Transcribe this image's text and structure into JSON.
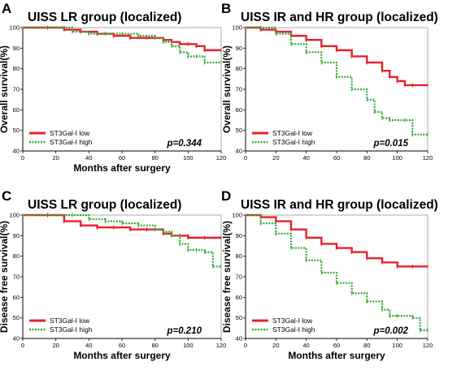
{
  "chart_data": [
    {
      "type": "line",
      "panel_letter": "A",
      "title": "UISS LR group (localized)",
      "xlabel": "Months after surgery",
      "ylabel": "Overall survival(%)",
      "xlim": [
        0,
        120
      ],
      "ylim": [
        40,
        100
      ],
      "xticks": [
        "0",
        "20",
        "40",
        "60",
        "80",
        "100",
        "120"
      ],
      "yticks": [
        "40",
        "50",
        "60",
        "70",
        "80",
        "90",
        "100"
      ],
      "legend_position": "bottom-left",
      "annotation": "p=0.344",
      "series": [
        {
          "name": "ST3Gal-I low",
          "color": "#e8202a",
          "style": "solid",
          "x": [
            0,
            15,
            25,
            35,
            45,
            55,
            65,
            75,
            85,
            90,
            95,
            100,
            105,
            110,
            120
          ],
          "y": [
            100,
            100,
            99,
            98,
            97,
            96,
            95,
            95,
            94,
            93,
            92,
            92,
            91,
            89,
            89
          ]
        },
        {
          "name": "ST3Gal-I high",
          "color": "#3aa83a",
          "style": "dotted",
          "x": [
            0,
            25,
            30,
            40,
            50,
            60,
            70,
            80,
            85,
            90,
            95,
            100,
            105,
            110,
            120
          ],
          "y": [
            100,
            100,
            98,
            97,
            97,
            97,
            96,
            95,
            93,
            91,
            88,
            86,
            86,
            83,
            83
          ]
        }
      ]
    },
    {
      "type": "line",
      "panel_letter": "B",
      "title": "UISS IR and HR group (localized)",
      "xlabel": "",
      "ylabel": "Overall survival(%)",
      "xlim": [
        0,
        120
      ],
      "ylim": [
        40,
        100
      ],
      "xticks": [
        "0",
        "20",
        "40",
        "60",
        "80",
        "100",
        "120"
      ],
      "yticks": [
        "40",
        "50",
        "60",
        "70",
        "80",
        "90",
        "100"
      ],
      "legend_position": "bottom-left",
      "annotation": "p=0.015",
      "series": [
        {
          "name": "ST3Gal-I low",
          "color": "#e8202a",
          "style": "solid",
          "x": [
            0,
            10,
            20,
            30,
            40,
            50,
            60,
            70,
            80,
            90,
            95,
            100,
            105,
            110,
            120
          ],
          "y": [
            100,
            99,
            98,
            96,
            94,
            91,
            89,
            86,
            83,
            79,
            76,
            74,
            72,
            72,
            72
          ]
        },
        {
          "name": "ST3Gal-I high",
          "color": "#3aa83a",
          "style": "dotted",
          "x": [
            0,
            10,
            20,
            30,
            40,
            50,
            60,
            70,
            80,
            85,
            90,
            95,
            105,
            110,
            120
          ],
          "y": [
            100,
            100,
            97,
            92,
            88,
            83,
            76,
            70,
            65,
            59,
            56,
            55,
            55,
            48,
            48
          ]
        }
      ]
    },
    {
      "type": "line",
      "panel_letter": "C",
      "title": "UISS LR group (localized)",
      "xlabel": "Months after surgery",
      "ylabel": "Disease free survival(%)",
      "xlim": [
        0,
        120
      ],
      "ylim": [
        40,
        100
      ],
      "xticks": [
        "0",
        "20",
        "40",
        "60",
        "80",
        "100",
        "120"
      ],
      "yticks": [
        "40",
        "50",
        "60",
        "70",
        "80",
        "90",
        "100"
      ],
      "legend_position": "bottom-left",
      "annotation": "p=0.210",
      "series": [
        {
          "name": "ST3Gal-I low",
          "color": "#e8202a",
          "style": "solid",
          "x": [
            0,
            15,
            25,
            35,
            45,
            55,
            65,
            75,
            85,
            90,
            95,
            100,
            110,
            120
          ],
          "y": [
            100,
            100,
            97,
            95,
            94,
            94,
            93,
            93,
            91,
            90,
            90,
            89,
            89,
            89
          ]
        },
        {
          "name": "ST3Gal-I high",
          "color": "#3aa83a",
          "style": "dotted",
          "x": [
            0,
            30,
            40,
            50,
            60,
            70,
            80,
            85,
            90,
            95,
            100,
            105,
            110,
            115,
            120
          ],
          "y": [
            100,
            100,
            98,
            97,
            96,
            95,
            93,
            92,
            90,
            86,
            83,
            83,
            82,
            75,
            75
          ]
        }
      ]
    },
    {
      "type": "line",
      "panel_letter": "D",
      "title": "UISS IR and HR group (localized)",
      "xlabel": "Months after surgery",
      "ylabel": "Disease free survival(%)",
      "xlim": [
        0,
        120
      ],
      "ylim": [
        40,
        100
      ],
      "xticks": [
        "0",
        "20",
        "40",
        "60",
        "80",
        "100",
        "120"
      ],
      "yticks": [
        "40",
        "50",
        "60",
        "70",
        "80",
        "90",
        "100"
      ],
      "legend_position": "bottom-left",
      "annotation": "p=0.002",
      "series": [
        {
          "name": "ST3Gal-I low",
          "color": "#e8202a",
          "style": "solid",
          "x": [
            0,
            10,
            20,
            30,
            40,
            50,
            60,
            70,
            80,
            90,
            100,
            110,
            120
          ],
          "y": [
            100,
            99,
            97,
            93,
            89,
            86,
            84,
            82,
            79,
            77,
            75,
            75,
            75
          ]
        },
        {
          "name": "ST3Gal-I high",
          "color": "#3aa83a",
          "style": "dotted",
          "x": [
            0,
            10,
            20,
            30,
            40,
            50,
            60,
            70,
            80,
            90,
            95,
            100,
            110,
            115,
            120
          ],
          "y": [
            100,
            96,
            91,
            84,
            78,
            72,
            67,
            62,
            58,
            54,
            51,
            51,
            50,
            44,
            44
          ]
        }
      ]
    }
  ]
}
